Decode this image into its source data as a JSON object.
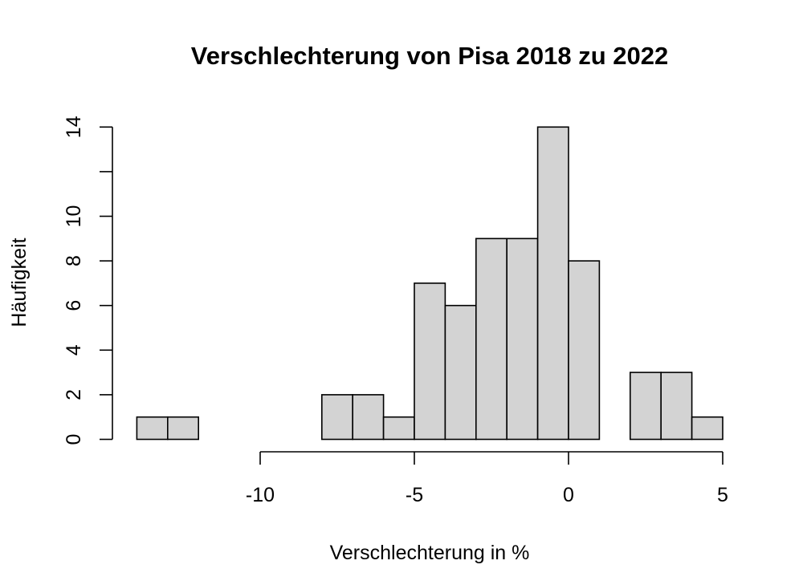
{
  "chart_data": {
    "type": "histogram",
    "title": "Verschlechterung von Pisa 2018 zu 2022",
    "xlabel": "Verschlechterung in %",
    "ylabel": "Häufigkeit",
    "bins": [
      {
        "from": -14,
        "to": -13,
        "count": 1
      },
      {
        "from": -13,
        "to": -12,
        "count": 1
      },
      {
        "from": -12,
        "to": -11,
        "count": 0
      },
      {
        "from": -11,
        "to": -10,
        "count": 0
      },
      {
        "from": -10,
        "to": -9,
        "count": 0
      },
      {
        "from": -9,
        "to": -8,
        "count": 0
      },
      {
        "from": -8,
        "to": -7,
        "count": 2
      },
      {
        "from": -7,
        "to": -6,
        "count": 2
      },
      {
        "from": -6,
        "to": -5,
        "count": 1
      },
      {
        "from": -5,
        "to": -4,
        "count": 7
      },
      {
        "from": -4,
        "to": -3,
        "count": 6
      },
      {
        "from": -3,
        "to": -2,
        "count": 9
      },
      {
        "from": -2,
        "to": -1,
        "count": 9
      },
      {
        "from": -1,
        "to": 0,
        "count": 14
      },
      {
        "from": 0,
        "to": 1,
        "count": 8
      },
      {
        "from": 1,
        "to": 2,
        "count": 0
      },
      {
        "from": 2,
        "to": 3,
        "count": 3
      },
      {
        "from": 3,
        "to": 4,
        "count": 3
      },
      {
        "from": 4,
        "to": 5,
        "count": 1
      }
    ],
    "x_ticks": [
      -10,
      -5,
      0,
      5
    ],
    "x_tick_labels": [
      "-10",
      "-5",
      "0",
      "5"
    ],
    "y_ticks": [
      0,
      2,
      4,
      6,
      8,
      10,
      12,
      14
    ],
    "y_tick_labels": [
      "0",
      "2",
      "4",
      "6",
      "8",
      "10",
      "",
      "14"
    ],
    "x_axis_range": [
      -10,
      5
    ],
    "y_axis_range": [
      0,
      14
    ],
    "bar_fill": "#d3d3d3",
    "bar_stroke": "#000000",
    "grid": false
  }
}
